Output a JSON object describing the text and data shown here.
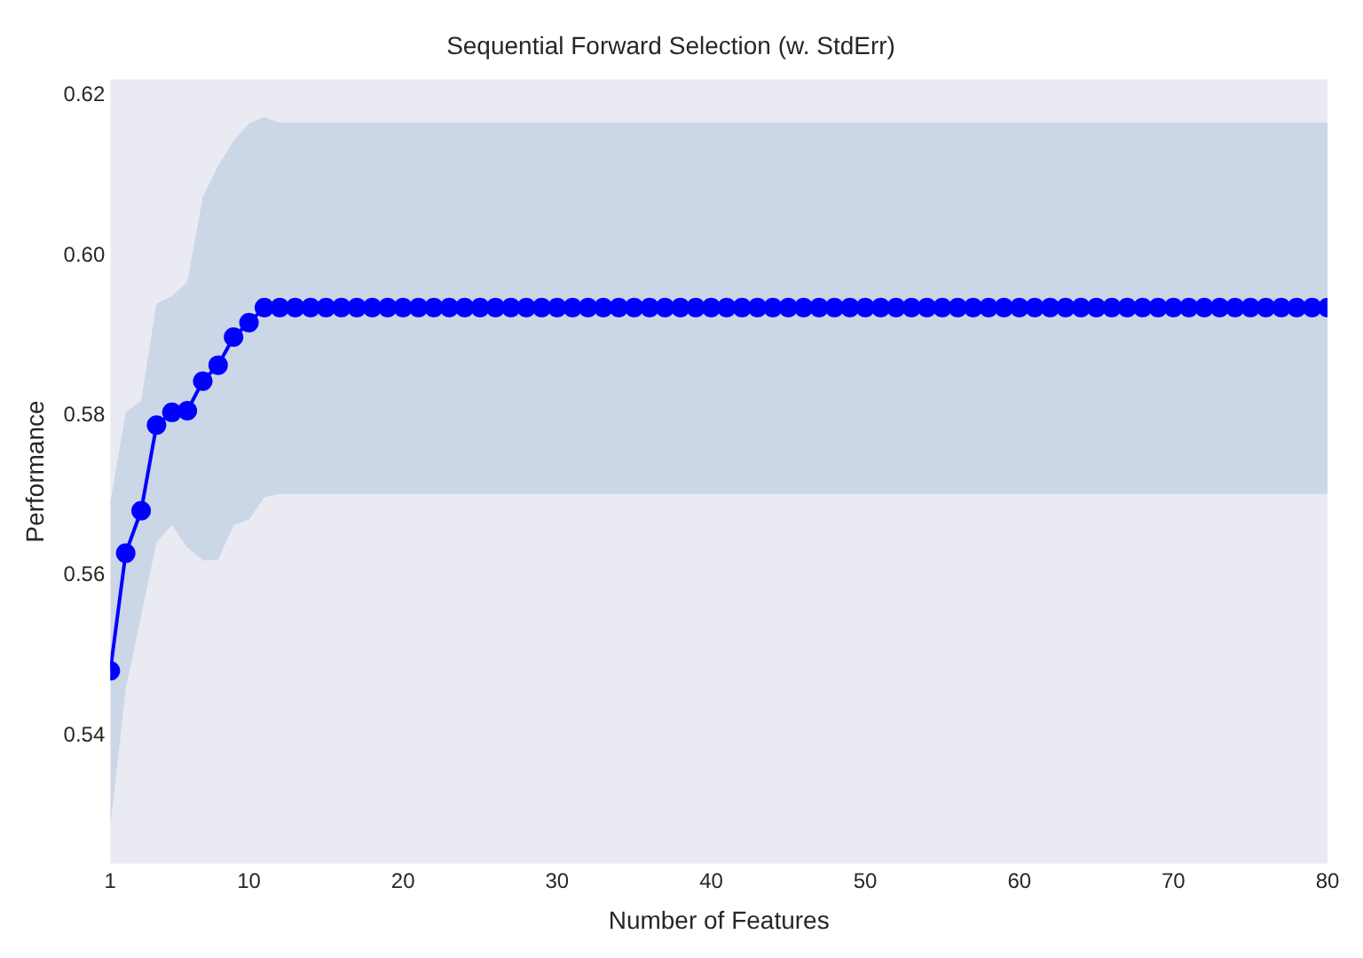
{
  "chart_data": {
    "type": "line",
    "title": "Sequential Forward Selection (w. StdErr)",
    "xlabel": "Number of Features",
    "ylabel": "Performance",
    "x": [
      1,
      2,
      3,
      4,
      5,
      6,
      7,
      8,
      9,
      10,
      11,
      12,
      13,
      14,
      15,
      16,
      17,
      18,
      19,
      20,
      21,
      22,
      23,
      24,
      25,
      26,
      27,
      28,
      29,
      30,
      31,
      32,
      33,
      34,
      35,
      36,
      37,
      38,
      39,
      40,
      41,
      42,
      43,
      44,
      45,
      46,
      47,
      48,
      49,
      50,
      51,
      52,
      53,
      54,
      55,
      56,
      57,
      58,
      59,
      60,
      61,
      62,
      63,
      64,
      65,
      66,
      67,
      68,
      69,
      70,
      71,
      72,
      73,
      74,
      75,
      76,
      77,
      78,
      79,
      80
    ],
    "series": [
      {
        "color": "#0000ff",
        "values": [
          0.5481,
          0.5628,
          0.5681,
          0.5788,
          0.5804,
          0.5806,
          0.5843,
          0.5863,
          0.5898,
          0.5916,
          0.5935,
          0.5935,
          0.5935,
          0.5935,
          0.5935,
          0.5935,
          0.5935,
          0.5935,
          0.5935,
          0.5935,
          0.5935,
          0.5935,
          0.5935,
          0.5935,
          0.5935,
          0.5935,
          0.5935,
          0.5935,
          0.5935,
          0.5935,
          0.5935,
          0.5935,
          0.5935,
          0.5935,
          0.5935,
          0.5935,
          0.5935,
          0.5935,
          0.5935,
          0.5935,
          0.5935,
          0.5935,
          0.5935,
          0.5935,
          0.5935,
          0.5935,
          0.5935,
          0.5935,
          0.5935,
          0.5935,
          0.5935,
          0.5935,
          0.5935,
          0.5935,
          0.5935,
          0.5935,
          0.5935,
          0.5935,
          0.5935,
          0.5935,
          0.5935,
          0.5935,
          0.5935,
          0.5935,
          0.5935,
          0.5935,
          0.5935,
          0.5935,
          0.5935,
          0.5935,
          0.5935,
          0.5935,
          0.5935,
          0.5935,
          0.5935,
          0.5935,
          0.5935,
          0.5935,
          0.5935,
          0.5935
        ],
        "lower": [
          0.5285,
          0.5458,
          0.555,
          0.5642,
          0.5663,
          0.5635,
          0.5619,
          0.562,
          0.5663,
          0.567,
          0.5698,
          0.5702,
          0.5702,
          0.5702,
          0.5702,
          0.5702,
          0.5702,
          0.5702,
          0.5702,
          0.5702,
          0.5702,
          0.5702,
          0.5702,
          0.5702,
          0.5702,
          0.5702,
          0.5702,
          0.5702,
          0.5702,
          0.5702,
          0.5702,
          0.5702,
          0.5702,
          0.5702,
          0.5702,
          0.5702,
          0.5702,
          0.5702,
          0.5702,
          0.5702,
          0.5702,
          0.5702,
          0.5702,
          0.5702,
          0.5702,
          0.5702,
          0.5702,
          0.5702,
          0.5702,
          0.5702,
          0.5702,
          0.5702,
          0.5702,
          0.5702,
          0.5702,
          0.5702,
          0.5702,
          0.5702,
          0.5702,
          0.5702,
          0.5702,
          0.5702,
          0.5702,
          0.5702,
          0.5702,
          0.5702,
          0.5702,
          0.5702,
          0.5702,
          0.5702,
          0.5702,
          0.5702,
          0.5702,
          0.5702,
          0.5702,
          0.5702,
          0.5702,
          0.5702,
          0.5702,
          0.5702
        ],
        "upper": [
          0.5691,
          0.5804,
          0.5818,
          0.594,
          0.5949,
          0.5967,
          0.6073,
          0.6112,
          0.6143,
          0.6165,
          0.6173,
          0.6166,
          0.6166,
          0.6166,
          0.6166,
          0.6166,
          0.6166,
          0.6166,
          0.6166,
          0.6166,
          0.6166,
          0.6166,
          0.6166,
          0.6166,
          0.6166,
          0.6166,
          0.6166,
          0.6166,
          0.6166,
          0.6166,
          0.6166,
          0.6166,
          0.6166,
          0.6166,
          0.6166,
          0.6166,
          0.6166,
          0.6166,
          0.6166,
          0.6166,
          0.6166,
          0.6166,
          0.6166,
          0.6166,
          0.6166,
          0.6166,
          0.6166,
          0.6166,
          0.6166,
          0.6166,
          0.6166,
          0.6166,
          0.6166,
          0.6166,
          0.6166,
          0.6166,
          0.6166,
          0.6166,
          0.6166,
          0.6166,
          0.6166,
          0.6166,
          0.6166,
          0.6166,
          0.6166,
          0.6166,
          0.6166,
          0.6166,
          0.6166,
          0.6166,
          0.6166,
          0.6166,
          0.6166,
          0.6166,
          0.6166,
          0.6166,
          0.6166,
          0.6166,
          0.6166,
          0.6166
        ]
      }
    ],
    "marker": "circle",
    "xlim": [
      1,
      80
    ],
    "xticks": [
      1,
      10,
      20,
      30,
      40,
      50,
      60,
      70,
      80
    ],
    "ylim": [
      0.524,
      0.622
    ],
    "yticks": [
      {
        "value": 0.54,
        "label": "0.54"
      },
      {
        "value": 0.56,
        "label": "0.56"
      },
      {
        "value": 0.58,
        "label": "0.58"
      },
      {
        "value": 0.6,
        "label": "0.60"
      },
      {
        "value": 0.62,
        "label": "0.62"
      }
    ]
  }
}
